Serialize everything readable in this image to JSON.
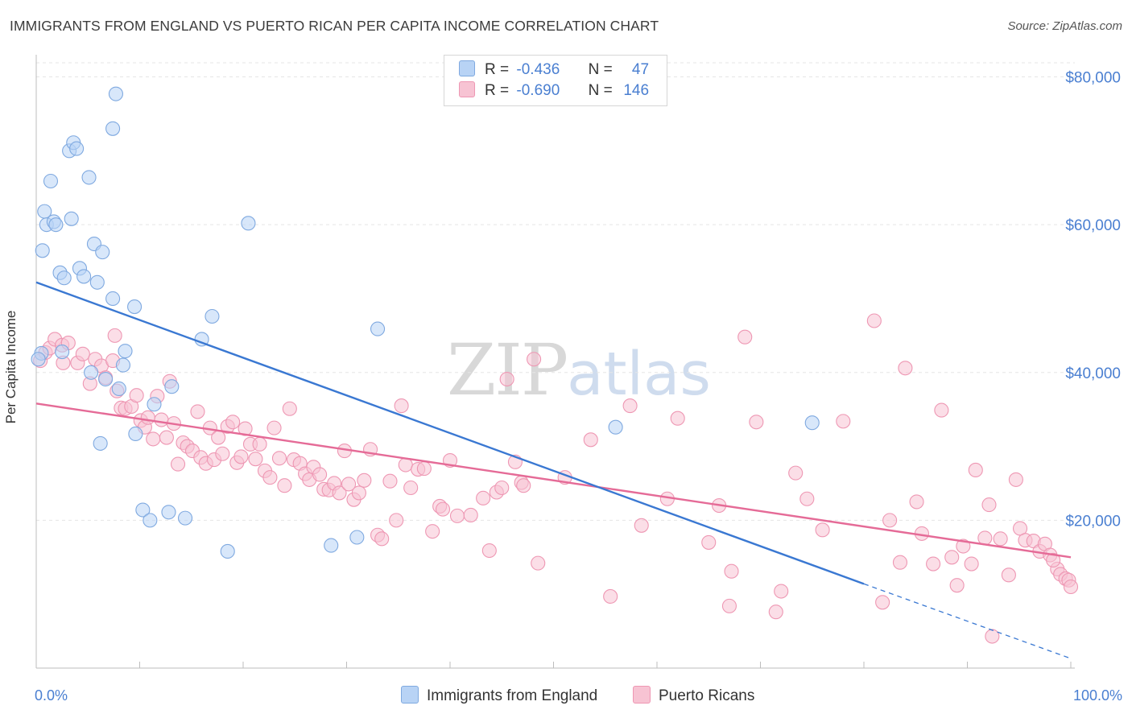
{
  "header": {
    "title": "IMMIGRANTS FROM ENGLAND VS PUERTO RICAN PER CAPITA INCOME CORRELATION CHART",
    "source": "Source: ZipAtlas.com"
  },
  "watermark": {
    "zip": "ZIP",
    "atlas": "atlas"
  },
  "stats": [
    {
      "r_label": "R =",
      "r_value": "-0.436",
      "n_label": "N =",
      "n_value": "47"
    },
    {
      "r_label": "R =",
      "r_value": "-0.690",
      "n_label": "N =",
      "n_value": "146"
    }
  ],
  "legend": {
    "series_a": "Immigrants from England",
    "series_b": "Puerto Ricans"
  },
  "colors": {
    "blue_fill": "#b8d3f5",
    "blue_stroke": "#7fa9e0",
    "blue_line": "#3a78d2",
    "pink_fill": "#f7c3d3",
    "pink_stroke": "#ee97b3",
    "pink_line": "#e56b97",
    "tick_text": "#4a7fd1",
    "grid": "#e5e5e5"
  },
  "chart_data": {
    "type": "scatter",
    "title": "IMMIGRANTS FROM ENGLAND VS PUERTO RICAN PER CAPITA INCOME CORRELATION CHART",
    "xlabel": "",
    "ylabel": "Per Capita Income",
    "xlim": [
      0,
      100
    ],
    "ylim": [
      0,
      83000
    ],
    "x_tick_labels": [
      "0.0%",
      "100.0%"
    ],
    "y_ticks": [
      20000,
      40000,
      60000,
      80000
    ],
    "y_tick_labels": [
      "$20,000",
      "$40,000",
      "$60,000",
      "$80,000"
    ],
    "grid": true,
    "legend_position": "bottom",
    "series": [
      {
        "name": "Immigrants from England",
        "points": [
          [
            0.5,
            42600
          ],
          [
            0.6,
            56500
          ],
          [
            0.8,
            61800
          ],
          [
            1.0,
            60000
          ],
          [
            1.4,
            65900
          ],
          [
            1.7,
            60400
          ],
          [
            1.9,
            60000
          ],
          [
            2.3,
            53500
          ],
          [
            2.5,
            42800
          ],
          [
            2.7,
            52800
          ],
          [
            3.2,
            70000
          ],
          [
            3.4,
            60800
          ],
          [
            3.6,
            71100
          ],
          [
            3.9,
            70300
          ],
          [
            4.2,
            54100
          ],
          [
            4.6,
            53000
          ],
          [
            5.1,
            66400
          ],
          [
            5.3,
            40000
          ],
          [
            5.6,
            57400
          ],
          [
            5.9,
            52200
          ],
          [
            6.2,
            30400
          ],
          [
            6.4,
            56300
          ],
          [
            6.7,
            39100
          ],
          [
            7.4,
            50000
          ],
          [
            7.4,
            73000
          ],
          [
            7.7,
            77700
          ],
          [
            8.0,
            37800
          ],
          [
            8.4,
            41000
          ],
          [
            8.6,
            42900
          ],
          [
            9.5,
            48900
          ],
          [
            9.6,
            31700
          ],
          [
            10.3,
            21400
          ],
          [
            11.0,
            20000
          ],
          [
            11.4,
            35700
          ],
          [
            12.8,
            21100
          ],
          [
            13.1,
            38100
          ],
          [
            14.4,
            20300
          ],
          [
            16.0,
            44500
          ],
          [
            17.0,
            47600
          ],
          [
            18.5,
            15800
          ],
          [
            20.5,
            60200
          ],
          [
            28.5,
            16600
          ],
          [
            31.0,
            17700
          ],
          [
            33.0,
            45900
          ],
          [
            56.0,
            32600
          ],
          [
            75.0,
            33200
          ],
          [
            0.2,
            41800
          ]
        ]
      },
      {
        "name": "Puerto Ricans",
        "points": [
          [
            0.4,
            41600
          ],
          [
            0.9,
            42700
          ],
          [
            1.3,
            43300
          ],
          [
            1.8,
            44500
          ],
          [
            2.5,
            43700
          ],
          [
            2.6,
            41300
          ],
          [
            3.1,
            44000
          ],
          [
            4.0,
            41300
          ],
          [
            4.5,
            42500
          ],
          [
            5.2,
            38500
          ],
          [
            5.7,
            41800
          ],
          [
            6.3,
            40900
          ],
          [
            6.7,
            39300
          ],
          [
            7.4,
            41600
          ],
          [
            7.6,
            45000
          ],
          [
            7.8,
            37500
          ],
          [
            8.2,
            35200
          ],
          [
            8.6,
            35100
          ],
          [
            9.2,
            35400
          ],
          [
            9.7,
            36900
          ],
          [
            10.1,
            33500
          ],
          [
            10.5,
            32600
          ],
          [
            10.8,
            33900
          ],
          [
            11.3,
            31000
          ],
          [
            11.7,
            36800
          ],
          [
            12.1,
            33600
          ],
          [
            12.6,
            31200
          ],
          [
            12.9,
            38800
          ],
          [
            13.3,
            33100
          ],
          [
            13.7,
            27600
          ],
          [
            14.2,
            30500
          ],
          [
            14.6,
            30000
          ],
          [
            15.1,
            29400
          ],
          [
            15.6,
            34700
          ],
          [
            15.9,
            28500
          ],
          [
            16.4,
            27700
          ],
          [
            16.8,
            32500
          ],
          [
            17.2,
            28200
          ],
          [
            17.6,
            31200
          ],
          [
            18.0,
            29000
          ],
          [
            18.5,
            32700
          ],
          [
            19.0,
            33300
          ],
          [
            19.4,
            27800
          ],
          [
            19.8,
            28600
          ],
          [
            20.2,
            32400
          ],
          [
            20.7,
            30300
          ],
          [
            21.2,
            28300
          ],
          [
            21.6,
            30300
          ],
          [
            22.1,
            26700
          ],
          [
            22.6,
            25800
          ],
          [
            23.0,
            32500
          ],
          [
            23.5,
            28400
          ],
          [
            24.0,
            24700
          ],
          [
            24.5,
            35100
          ],
          [
            24.9,
            28200
          ],
          [
            25.5,
            27700
          ],
          [
            26.0,
            26300
          ],
          [
            26.4,
            25500
          ],
          [
            26.8,
            27200
          ],
          [
            27.4,
            26200
          ],
          [
            27.8,
            24200
          ],
          [
            28.3,
            24100
          ],
          [
            28.8,
            25000
          ],
          [
            29.3,
            23700
          ],
          [
            29.8,
            29400
          ],
          [
            30.2,
            24900
          ],
          [
            30.7,
            22800
          ],
          [
            31.2,
            23700
          ],
          [
            31.7,
            25400
          ],
          [
            32.3,
            29600
          ],
          [
            33.0,
            18000
          ],
          [
            33.4,
            17500
          ],
          [
            34.2,
            25300
          ],
          [
            34.8,
            20000
          ],
          [
            35.3,
            35500
          ],
          [
            35.7,
            27500
          ],
          [
            36.2,
            24400
          ],
          [
            36.9,
            26900
          ],
          [
            37.5,
            27000
          ],
          [
            38.3,
            18500
          ],
          [
            39.0,
            21900
          ],
          [
            39.3,
            21500
          ],
          [
            40.0,
            28100
          ],
          [
            40.7,
            20600
          ],
          [
            42.0,
            20700
          ],
          [
            43.2,
            23000
          ],
          [
            43.8,
            15900
          ],
          [
            44.5,
            23800
          ],
          [
            45.0,
            24400
          ],
          [
            45.5,
            39100
          ],
          [
            46.3,
            27900
          ],
          [
            46.9,
            25100
          ],
          [
            47.1,
            24700
          ],
          [
            48.1,
            41800
          ],
          [
            48.5,
            14200
          ],
          [
            51.1,
            25800
          ],
          [
            53.6,
            30900
          ],
          [
            55.5,
            9700
          ],
          [
            57.4,
            35500
          ],
          [
            58.5,
            19300
          ],
          [
            61.0,
            22900
          ],
          [
            62.0,
            33800
          ],
          [
            65.0,
            17000
          ],
          [
            66.0,
            22000
          ],
          [
            67.0,
            8400
          ],
          [
            67.2,
            13100
          ],
          [
            68.5,
            44800
          ],
          [
            69.6,
            33300
          ],
          [
            71.5,
            7600
          ],
          [
            72.0,
            10400
          ],
          [
            73.4,
            26400
          ],
          [
            74.5,
            22900
          ],
          [
            76.0,
            18700
          ],
          [
            78.0,
            33400
          ],
          [
            81.0,
            47000
          ],
          [
            81.8,
            8900
          ],
          [
            82.5,
            20000
          ],
          [
            83.5,
            14300
          ],
          [
            84.0,
            40600
          ],
          [
            85.1,
            22500
          ],
          [
            85.6,
            18200
          ],
          [
            86.7,
            14100
          ],
          [
            87.5,
            34900
          ],
          [
            88.5,
            15000
          ],
          [
            89.0,
            11200
          ],
          [
            89.6,
            16500
          ],
          [
            90.4,
            14100
          ],
          [
            90.8,
            26800
          ],
          [
            91.7,
            17600
          ],
          [
            92.1,
            22100
          ],
          [
            92.4,
            4300
          ],
          [
            93.2,
            17500
          ],
          [
            94.0,
            12600
          ],
          [
            94.7,
            25500
          ],
          [
            95.1,
            18900
          ],
          [
            95.6,
            17300
          ],
          [
            96.4,
            17200
          ],
          [
            97.0,
            15800
          ],
          [
            97.5,
            16800
          ],
          [
            98.0,
            15300
          ],
          [
            98.7,
            13400
          ],
          [
            99.0,
            12700
          ],
          [
            99.5,
            12100
          ],
          [
            99.8,
            11900
          ],
          [
            100.0,
            11000
          ],
          [
            98.3,
            14600
          ]
        ]
      }
    ],
    "trend_lines": [
      {
        "series": "Immigrants from England",
        "x1": 0,
        "y1": 52200,
        "x2": 80,
        "y2": 11400,
        "dash_to_x": 100,
        "dash_to_y": 1300
      },
      {
        "series": "Puerto Ricans",
        "x1": 0,
        "y1": 35800,
        "x2": 100,
        "y2": 15000
      }
    ]
  }
}
